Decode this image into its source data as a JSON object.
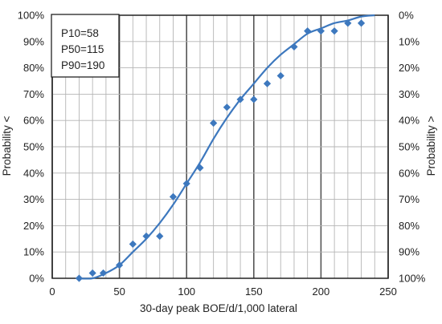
{
  "chart_data": {
    "type": "scatter",
    "xlabel": "30-day peak BOE/d/1,000 lateral",
    "ylabel_left": "Probability <",
    "ylabel_right": "Probability >",
    "xlim": [
      0,
      250
    ],
    "ylim": [
      0,
      100
    ],
    "x_major_ticks": [
      0,
      50,
      100,
      150,
      200,
      250
    ],
    "x_minor_step": 10,
    "y_tick_step": 10,
    "grid": true,
    "left_tick_labels": [
      "0%",
      "10%",
      "20%",
      "30%",
      "40%",
      "50%",
      "60%",
      "70%",
      "80%",
      "90%",
      "100%"
    ],
    "right_tick_labels": [
      "100%",
      "90%",
      "80%",
      "70%",
      "60%",
      "50%",
      "40%",
      "30%",
      "20%",
      "10%",
      "0%"
    ],
    "annotations": [
      "P10=58",
      "P50=115",
      "P90=190"
    ],
    "annotation_placement": "top-left",
    "marker_color": "#3d78be",
    "curve_color": "#3d78be",
    "series": [
      {
        "kind": "points",
        "x": [
          20,
          30,
          38,
          50,
          60,
          70,
          80,
          90,
          100,
          110,
          120,
          130,
          140,
          150,
          160,
          170,
          180,
          190,
          200,
          210,
          220,
          230
        ],
        "y": [
          0,
          2,
          2,
          5,
          13,
          16,
          16,
          31,
          36,
          42,
          59,
          65,
          68,
          68,
          74,
          77,
          88,
          94,
          94,
          94,
          97,
          97
        ]
      },
      {
        "kind": "fitted-curve",
        "x": [
          18,
          30,
          40,
          50,
          60,
          70,
          80,
          90,
          100,
          110,
          120,
          130,
          140,
          150,
          160,
          170,
          180,
          190,
          200,
          210,
          220,
          230,
          240
        ],
        "y": [
          0,
          0,
          2,
          5,
          10,
          15,
          21,
          28,
          36,
          44,
          53,
          61,
          68,
          74,
          80,
          85,
          89,
          93,
          95,
          97,
          98,
          99.5,
          100
        ]
      }
    ]
  }
}
